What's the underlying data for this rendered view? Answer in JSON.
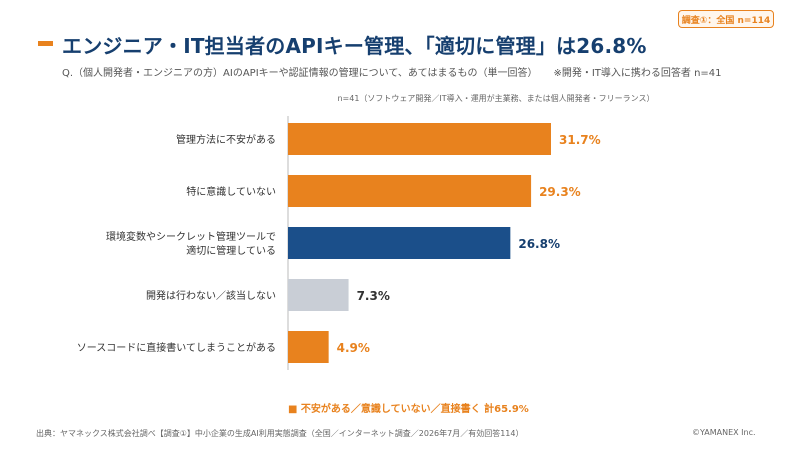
{
  "badge": "調査①：全国 n=114",
  "title": "エンジニア・IT担当者のAPIキー管理、「適切に管理」は26.8%",
  "question": "Q.（個人開発者・エンジニアの方）AIのAPIキーや認証情報の管理について、あてはまるもの（単一回答）",
  "question_note": "※開発・IT導入に携わる回答者 n=41",
  "chart_data": {
    "type": "bar",
    "orientation": "horizontal",
    "sample_note": "n=41（ソフトウェア開発／IT導入・運用が主業務、または個人開発者・フリーランス）",
    "categories": [
      [
        "管理方法に不安がある"
      ],
      [
        "特に意識していない"
      ],
      [
        "環境変数やシークレット管理ツールで",
        "適切に管理している"
      ],
      [
        "開発は行わない／該当しない"
      ],
      [
        "ソースコードに直接書いてしまうことがある"
      ]
    ],
    "values": [
      31.7,
      29.3,
      26.8,
      7.3,
      4.9
    ],
    "value_labels": [
      "31.7%",
      "29.3%",
      "26.8%",
      "7.3%",
      "4.9%"
    ],
    "bar_colors": [
      "#E8821E",
      "#E8821E",
      "#1B4F8A",
      "#C9CED6",
      "#E8821E"
    ],
    "label_colors": [
      "#E8821E",
      "#E8821E",
      "#163F6F",
      "#333333",
      "#E8821E"
    ],
    "xlim": [
      0,
      40
    ],
    "summary": "■ 不安がある／意識していない／直接書く 計65.9%",
    "summary_color": "#E8821E"
  },
  "footer": {
    "source": "出典：ヤマネックス株式会社調べ【調査①】中小企業の生成AI利用実態調査（全国／インターネット調査／2026年7月／有効回答114）",
    "copyright": "©YAMANEX Inc."
  }
}
